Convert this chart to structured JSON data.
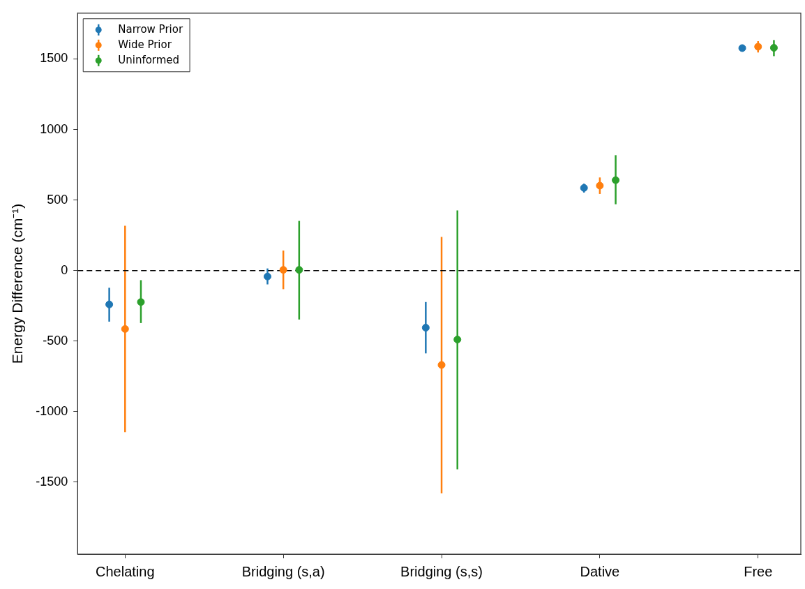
{
  "chart_data": {
    "type": "scatter",
    "ylabel": "Energy Difference (cm⁻¹)",
    "categories": [
      "Chelating",
      "Bridging (s,a)",
      "Bridging (s,s)",
      "Dative",
      "Free"
    ],
    "series": [
      {
        "name": "Narrow Prior",
        "color": "#1f77b4",
        "values": [
          -240,
          -42,
          -405,
          586,
          1577
        ],
        "errors": [
          [
            -362,
            -122
          ],
          [
            -98,
            15
          ],
          [
            -587,
            -223
          ],
          [
            553,
            616
          ],
          null
        ]
      },
      {
        "name": "Wide Prior",
        "color": "#ff7f0e",
        "values": [
          -414,
          5,
          -669,
          602,
          1587
        ],
        "errors": [
          [
            -1145,
            318
          ],
          [
            -132,
            142
          ],
          [
            -1579,
            238
          ],
          [
            543,
            660
          ],
          [
            1546,
            1626
          ]
        ]
      },
      {
        "name": "Uninformed",
        "color": "#2ca02c",
        "values": [
          -223,
          5,
          -489,
          641,
          1579
        ],
        "errors": [
          [
            -372,
            -68
          ],
          [
            -347,
            352
          ],
          [
            -1409,
            427
          ],
          [
            470,
            818
          ],
          [
            1520,
            1634
          ]
        ]
      }
    ],
    "ylim": [
      -2010,
      1825
    ],
    "yticks": [
      -1500,
      -1000,
      -500,
      0,
      500,
      1000,
      1500
    ],
    "ref_lines": [
      {
        "axis": "y",
        "value": 0,
        "color": "#000000",
        "line_style": "dashed"
      }
    ],
    "grid": false,
    "legend": "top left",
    "marker": "circle"
  }
}
